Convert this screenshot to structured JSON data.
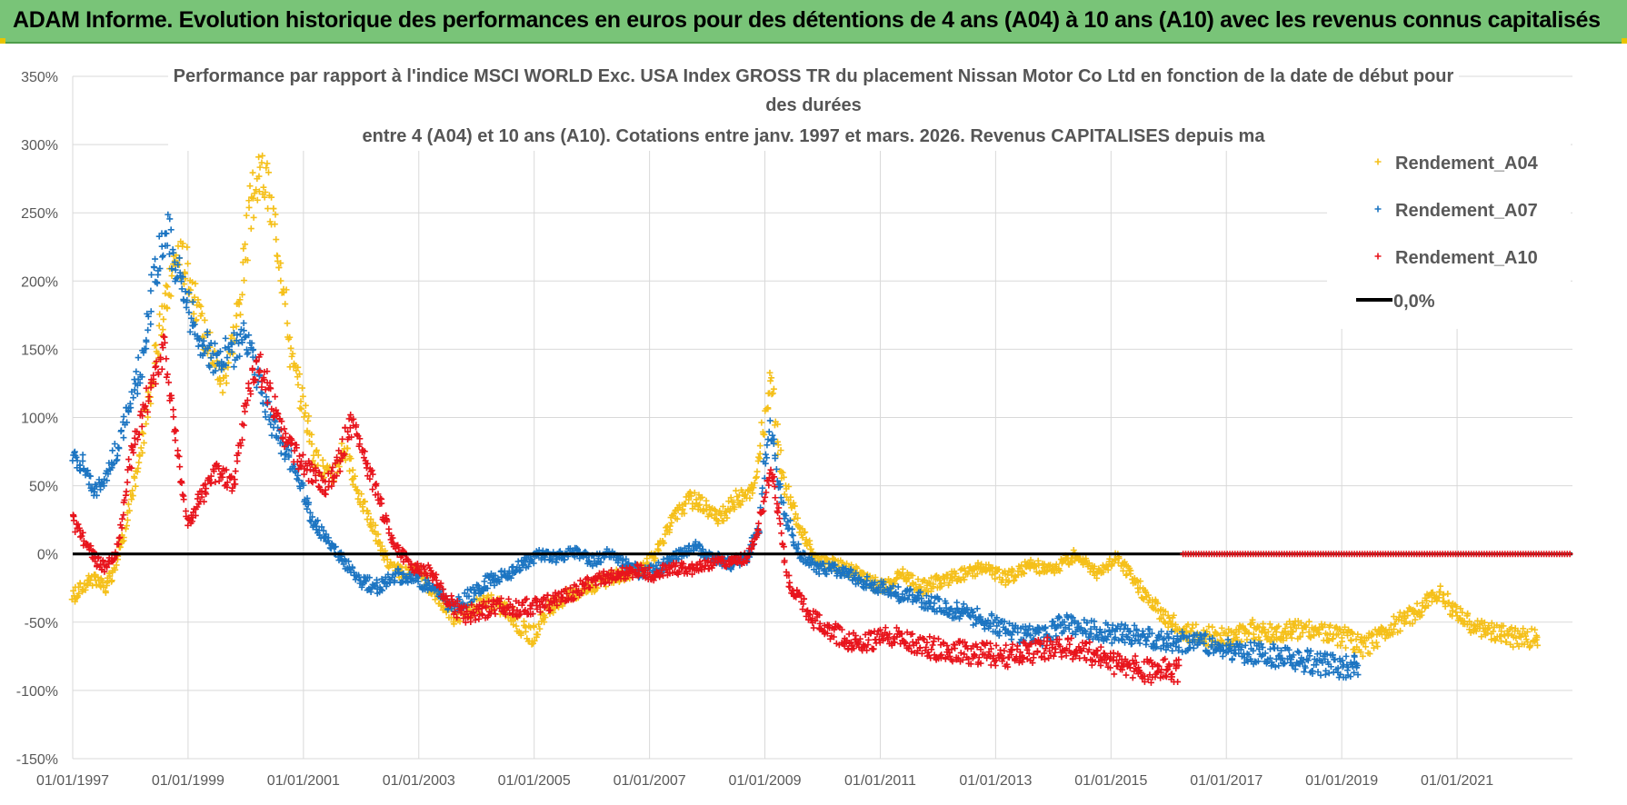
{
  "banner": {
    "title": "ADAM Informe. Evolution historique des performances en euros pour des détentions de 4 ans (A04) à 10 ans (A10) avec les revenus connus capitalisés"
  },
  "chart_data": {
    "type": "scatter",
    "title_lines": [
      "Performance par rapport à l'indice MSCI WORLD Exc. USA Index GROSS TR  du placement Nissan Motor Co Ltd en fonction de la date de début pour",
      "des durées",
      "entre 4 (A04) et 10 ans (A10).  Cotations entre janv. 1997 et mars. 2026. Revenus CAPITALISES depuis ma"
    ],
    "xlabel": "",
    "ylabel": "",
    "x_tick_labels": [
      "01/01/1997",
      "01/01/1999",
      "01/01/2001",
      "01/01/2003",
      "01/01/2005",
      "01/01/2007",
      "01/01/2009",
      "01/01/2011",
      "01/01/2013",
      "01/01/2015",
      "01/01/2017",
      "01/01/2019",
      "01/01/2021"
    ],
    "xlim": [
      1997.0,
      2023.0
    ],
    "y_tick_labels": [
      "350%",
      "300%",
      "250%",
      "200%",
      "150%",
      "100%",
      "50%",
      "0%",
      "-50%",
      "-100%",
      "-150%"
    ],
    "ylim": [
      -150,
      350
    ],
    "legend_position": "top-right",
    "series": [
      {
        "name": "Rendement_A04",
        "color": "#f5c01a",
        "marker": "plus",
        "points": [
          [
            1997.0,
            -32
          ],
          [
            1997.3,
            -18
          ],
          [
            1997.6,
            -25
          ],
          [
            1997.9,
            15
          ],
          [
            1998.2,
            80
          ],
          [
            1998.5,
            160
          ],
          [
            1998.8,
            220
          ],
          [
            1999.0,
            210
          ],
          [
            1999.2,
            170
          ],
          [
            1999.4,
            150
          ],
          [
            1999.6,
            125
          ],
          [
            1999.9,
            185
          ],
          [
            2000.1,
            260
          ],
          [
            2000.3,
            280
          ],
          [
            2000.6,
            220
          ],
          [
            2000.8,
            140
          ],
          [
            2001.0,
            110
          ],
          [
            2001.2,
            70
          ],
          [
            2001.5,
            55
          ],
          [
            2001.7,
            80
          ],
          [
            2001.9,
            50
          ],
          [
            2002.2,
            20
          ],
          [
            2002.5,
            -10
          ],
          [
            2002.8,
            -15
          ],
          [
            2003.0,
            -12
          ],
          [
            2003.3,
            -30
          ],
          [
            2003.6,
            -45
          ],
          [
            2003.9,
            -40
          ],
          [
            2004.2,
            -35
          ],
          [
            2004.5,
            -40
          ],
          [
            2004.8,
            -55
          ],
          [
            2005.0,
            -60
          ],
          [
            2005.3,
            -38
          ],
          [
            2005.6,
            -30
          ],
          [
            2005.9,
            -25
          ],
          [
            2006.2,
            -20
          ],
          [
            2006.5,
            -15
          ],
          [
            2006.8,
            -12
          ],
          [
            2007.1,
            0
          ],
          [
            2007.4,
            25
          ],
          [
            2007.7,
            40
          ],
          [
            2007.9,
            38
          ],
          [
            2008.2,
            25
          ],
          [
            2008.5,
            40
          ],
          [
            2008.8,
            45
          ],
          [
            2009.0,
            100
          ],
          [
            2009.1,
            130
          ],
          [
            2009.3,
            55
          ],
          [
            2009.6,
            20
          ],
          [
            2009.9,
            -5
          ],
          [
            2010.2,
            -8
          ],
          [
            2010.5,
            -12
          ],
          [
            2010.8,
            -20
          ],
          [
            2011.1,
            -25
          ],
          [
            2011.4,
            -15
          ],
          [
            2011.7,
            -25
          ],
          [
            2012.0,
            -20
          ],
          [
            2012.4,
            -15
          ],
          [
            2012.8,
            -10
          ],
          [
            2013.2,
            -18
          ],
          [
            2013.6,
            -8
          ],
          [
            2014.0,
            -12
          ],
          [
            2014.4,
            0
          ],
          [
            2014.8,
            -15
          ],
          [
            2015.1,
            -2
          ],
          [
            2015.4,
            -20
          ],
          [
            2015.8,
            -40
          ],
          [
            2016.2,
            -55
          ],
          [
            2016.6,
            -60
          ],
          [
            2017.0,
            -62
          ],
          [
            2017.4,
            -55
          ],
          [
            2017.8,
            -58
          ],
          [
            2018.2,
            -55
          ],
          [
            2018.6,
            -58
          ],
          [
            2019.0,
            -60
          ],
          [
            2019.4,
            -68
          ],
          [
            2019.8,
            -55
          ],
          [
            2020.2,
            -45
          ],
          [
            2020.5,
            -35
          ],
          [
            2020.7,
            -28
          ],
          [
            2021.0,
            -45
          ],
          [
            2021.4,
            -55
          ],
          [
            2021.8,
            -60
          ],
          [
            2022.2,
            -62
          ],
          [
            2022.4,
            -60
          ]
        ]
      },
      {
        "name": "Rendement_A07",
        "color": "#1c75c2",
        "marker": "plus",
        "points": [
          [
            1997.0,
            75
          ],
          [
            1997.2,
            65
          ],
          [
            1997.4,
            45
          ],
          [
            1997.6,
            60
          ],
          [
            1997.8,
            80
          ],
          [
            1998.0,
            110
          ],
          [
            1998.2,
            140
          ],
          [
            1998.4,
            200
          ],
          [
            1998.6,
            240
          ],
          [
            1998.8,
            210
          ],
          [
            1999.0,
            180
          ],
          [
            1999.2,
            160
          ],
          [
            1999.5,
            140
          ],
          [
            1999.8,
            150
          ],
          [
            2000.0,
            160
          ],
          [
            2000.2,
            130
          ],
          [
            2000.4,
            100
          ],
          [
            2000.6,
            80
          ],
          [
            2000.9,
            60
          ],
          [
            2001.1,
            30
          ],
          [
            2001.4,
            10
          ],
          [
            2001.7,
            -5
          ],
          [
            2002.0,
            -20
          ],
          [
            2002.3,
            -25
          ],
          [
            2002.6,
            -15
          ],
          [
            2003.0,
            -20
          ],
          [
            2003.3,
            -25
          ],
          [
            2003.6,
            -40
          ],
          [
            2003.9,
            -30
          ],
          [
            2004.2,
            -20
          ],
          [
            2004.5,
            -15
          ],
          [
            2004.8,
            -8
          ],
          [
            2005.1,
            0
          ],
          [
            2005.4,
            -3
          ],
          [
            2005.7,
            2
          ],
          [
            2006.0,
            -5
          ],
          [
            2006.3,
            0
          ],
          [
            2006.6,
            -8
          ],
          [
            2006.9,
            -15
          ],
          [
            2007.2,
            -10
          ],
          [
            2007.5,
            0
          ],
          [
            2007.8,
            5
          ],
          [
            2008.1,
            -2
          ],
          [
            2008.4,
            -8
          ],
          [
            2008.7,
            -2
          ],
          [
            2008.9,
            20
          ],
          [
            2009.0,
            70
          ],
          [
            2009.1,
            90
          ],
          [
            2009.3,
            35
          ],
          [
            2009.6,
            0
          ],
          [
            2009.9,
            -10
          ],
          [
            2010.3,
            -12
          ],
          [
            2010.7,
            -20
          ],
          [
            2011.0,
            -25
          ],
          [
            2011.4,
            -30
          ],
          [
            2011.8,
            -35
          ],
          [
            2012.2,
            -40
          ],
          [
            2012.6,
            -45
          ],
          [
            2013.0,
            -52
          ],
          [
            2013.4,
            -58
          ],
          [
            2013.8,
            -62
          ],
          [
            2014.2,
            -50
          ],
          [
            2014.6,
            -55
          ],
          [
            2015.0,
            -58
          ],
          [
            2015.4,
            -60
          ],
          [
            2015.8,
            -62
          ],
          [
            2016.2,
            -64
          ],
          [
            2016.6,
            -66
          ],
          [
            2017.0,
            -70
          ],
          [
            2017.4,
            -72
          ],
          [
            2017.8,
            -74
          ],
          [
            2018.2,
            -77
          ],
          [
            2018.6,
            -80
          ],
          [
            2019.0,
            -82
          ],
          [
            2019.3,
            -84
          ]
        ]
      },
      {
        "name": "Rendement_A10",
        "color": "#e8141c",
        "marker": "plus",
        "points": [
          [
            1997.0,
            25
          ],
          [
            1997.2,
            10
          ],
          [
            1997.4,
            -5
          ],
          [
            1997.6,
            -10
          ],
          [
            1997.8,
            5
          ],
          [
            1998.0,
            70
          ],
          [
            1998.2,
            100
          ],
          [
            1998.4,
            130
          ],
          [
            1998.6,
            150
          ],
          [
            1998.8,
            80
          ],
          [
            1999.0,
            20
          ],
          [
            1999.2,
            40
          ],
          [
            1999.5,
            60
          ],
          [
            1999.8,
            50
          ],
          [
            2000.0,
            110
          ],
          [
            2000.2,
            140
          ],
          [
            2000.4,
            120
          ],
          [
            2000.6,
            90
          ],
          [
            2000.9,
            70
          ],
          [
            2001.1,
            60
          ],
          [
            2001.4,
            50
          ],
          [
            2001.6,
            65
          ],
          [
            2001.8,
            95
          ],
          [
            2002.0,
            80
          ],
          [
            2002.3,
            40
          ],
          [
            2002.6,
            5
          ],
          [
            2002.9,
            -10
          ],
          [
            2003.2,
            -12
          ],
          [
            2003.5,
            -35
          ],
          [
            2003.8,
            -45
          ],
          [
            2004.1,
            -42
          ],
          [
            2004.4,
            -38
          ],
          [
            2004.7,
            -40
          ],
          [
            2005.0,
            -38
          ],
          [
            2005.3,
            -35
          ],
          [
            2005.6,
            -30
          ],
          [
            2005.9,
            -22
          ],
          [
            2006.2,
            -18
          ],
          [
            2006.5,
            -15
          ],
          [
            2006.8,
            -12
          ],
          [
            2007.1,
            -15
          ],
          [
            2007.4,
            -10
          ],
          [
            2007.7,
            -12
          ],
          [
            2008.0,
            -8
          ],
          [
            2008.4,
            -5
          ],
          [
            2008.7,
            -3
          ],
          [
            2008.9,
            20
          ],
          [
            2009.1,
            60
          ],
          [
            2009.2,
            40
          ],
          [
            2009.4,
            -20
          ],
          [
            2009.7,
            -40
          ],
          [
            2010.0,
            -55
          ],
          [
            2010.4,
            -62
          ],
          [
            2010.8,
            -65
          ],
          [
            2011.2,
            -60
          ],
          [
            2011.6,
            -66
          ],
          [
            2012.0,
            -70
          ],
          [
            2012.4,
            -72
          ],
          [
            2012.8,
            -73
          ],
          [
            2013.2,
            -75
          ],
          [
            2013.6,
            -72
          ],
          [
            2014.0,
            -68
          ],
          [
            2014.4,
            -70
          ],
          [
            2014.8,
            -75
          ],
          [
            2015.2,
            -82
          ],
          [
            2015.6,
            -85
          ],
          [
            2016.0,
            -86
          ],
          [
            2016.2,
            -86
          ]
        ]
      },
      {
        "name": "0,0%",
        "color": "#000000",
        "marker": "line",
        "points": [
          [
            1997.0,
            0
          ],
          [
            2023.0,
            0
          ]
        ]
      }
    ]
  }
}
